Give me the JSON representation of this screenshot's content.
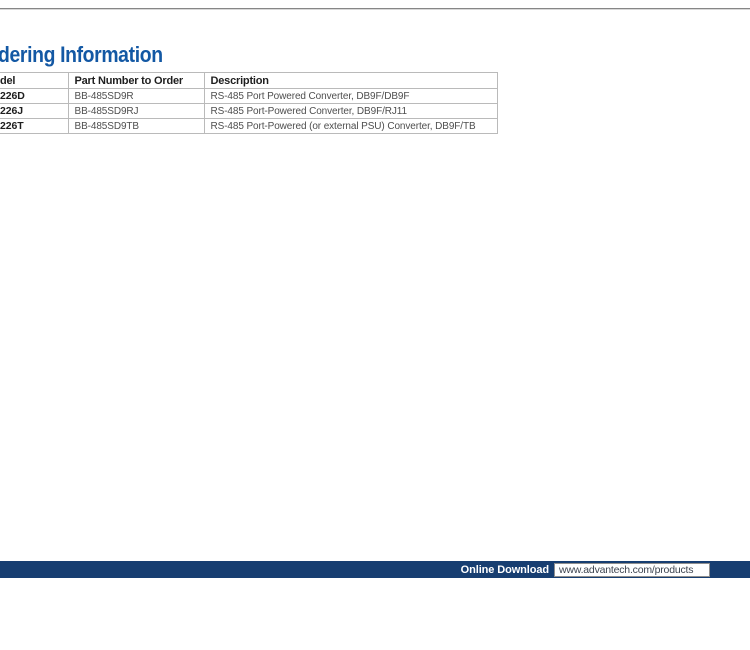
{
  "heading": "dering Information",
  "table": {
    "headers": [
      "del",
      "Part Number to Order",
      "Description"
    ],
    "rows": [
      [
        "226D",
        "BB-485SD9R",
        "RS-485 Port Powered Converter, DB9F/DB9F"
      ],
      [
        "226J",
        "BB-485SD9RJ",
        "RS-485 Port-Powered Converter, DB9F/RJ11"
      ],
      [
        "226T",
        "BB-485SD9TB",
        "RS-485 Port-Powered (or external PSU) Converter, DB9F/TB"
      ]
    ]
  },
  "footer": {
    "label": "Online Download",
    "url": "www.advantech.com/products"
  },
  "colors": {
    "heading_blue": "#1358A4",
    "footer_navy": "#173E71",
    "top_line_gray": "#868686",
    "table_border": "#bababa",
    "body_text": "#4e4e4e",
    "strong_text": "#1f1f1f"
  }
}
